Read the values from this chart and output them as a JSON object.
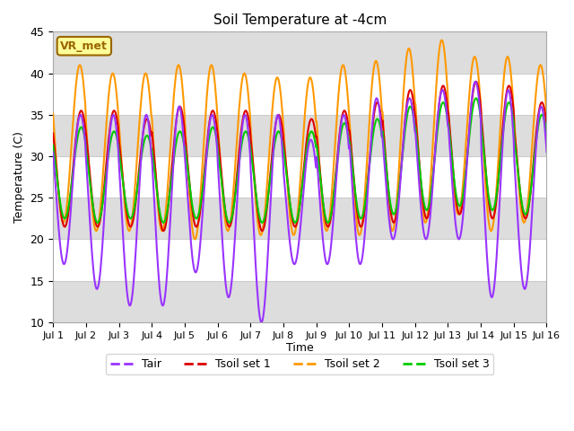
{
  "title": "Soil Temperature at -4cm",
  "xlabel": "Time",
  "ylabel": "Temperature (C)",
  "ylim": [
    10,
    45
  ],
  "xlim": [
    0,
    15
  ],
  "fig_bg_color": "#ffffff",
  "plot_bg_color": "#ffffff",
  "band_color": "#dddddd",
  "grid_color": "#cccccc",
  "colors": {
    "Tair": "#9933ff",
    "Tsoil1": "#dd0000",
    "Tsoil2": "#ff9900",
    "Tsoil3": "#00cc00"
  },
  "legend_label": "VR_met",
  "legend_bg": "#ffff99",
  "legend_border": "#996600",
  "x_ticks": [
    0,
    1,
    2,
    3,
    4,
    5,
    6,
    7,
    8,
    9,
    10,
    11,
    12,
    13,
    14,
    15
  ],
  "x_tick_labels": [
    "Jul 1",
    "Jul 2",
    "Jul 3",
    "Jul 4",
    "Jul 5",
    "Jul 6",
    "Jul 7",
    "Jul 8",
    "Jul 9",
    "Jul 10",
    "Jul 11",
    "Jul 12",
    "Jul 13",
    "Jul 14",
    "Jul 15",
    "Jul 16"
  ],
  "y_ticks": [
    10,
    15,
    20,
    25,
    30,
    35,
    40,
    45
  ]
}
